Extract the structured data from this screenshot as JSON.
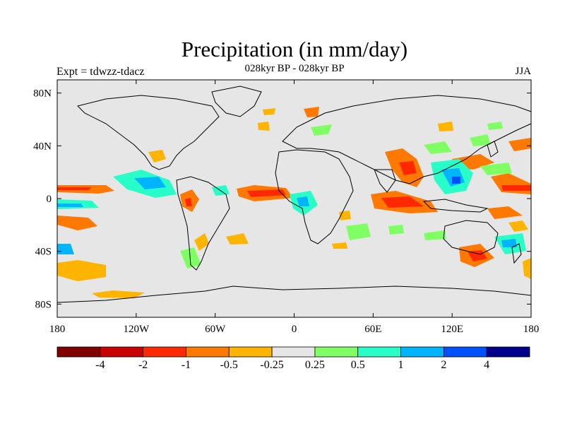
{
  "title": "Precipitation (in mm/day)",
  "subtitle": "028kyr BP - 028kyr BP",
  "left_label": "Expt = tdwzz-tdacz",
  "right_label": "JJA",
  "lat_ticks": [
    "80N",
    "40N",
    "0",
    "40S",
    "80S"
  ],
  "lon_ticks": [
    "180",
    "120W",
    "60W",
    "0",
    "60E",
    "120E",
    "180"
  ],
  "colorbar": {
    "colors": [
      "#800000",
      "#c80000",
      "#ff2800",
      "#ff7800",
      "#ffb400",
      "#e6e6e6",
      "#80ff64",
      "#28ffc8",
      "#00b4ff",
      "#0050ff",
      "#00008c"
    ],
    "labels": [
      "-4",
      "-2",
      "-1",
      "-0.5",
      "-0.25",
      "0.25",
      "0.5",
      "1",
      "2",
      "4"
    ]
  },
  "map": {
    "background": "#e6e6e6",
    "extent_lon": [
      -180,
      180
    ],
    "extent_lat": [
      -90,
      90
    ]
  }
}
